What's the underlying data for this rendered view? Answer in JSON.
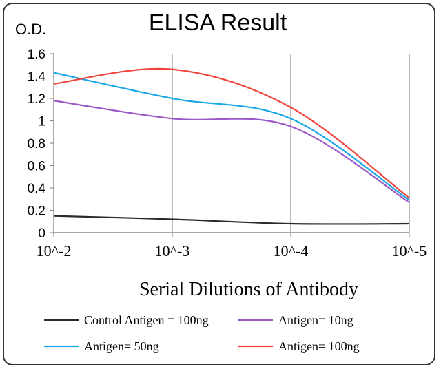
{
  "chart_data": {
    "type": "line",
    "title": "ELISA Result",
    "ylabel": "O.D.",
    "xlabel": "Serial  Dilutions  of Antibody",
    "categories": [
      "10^-2",
      "10^-3",
      "10^-4",
      "10^-5"
    ],
    "ylim": [
      0,
      1.6
    ],
    "yticks": [
      0,
      0.2,
      0.4,
      0.6,
      0.8,
      1,
      1.2,
      1.4,
      1.6
    ],
    "grid": "vertical",
    "legend_position": "bottom",
    "series": [
      {
        "name": "Control Antigen = 100ng",
        "color": "#2b2b2b",
        "values": [
          0.15,
          0.12,
          0.08,
          0.08
        ]
      },
      {
        "name": "Antigen= 10ng",
        "color": "#9b59c8",
        "values": [
          1.18,
          1.02,
          0.95,
          0.27
        ]
      },
      {
        "name": "Antigen= 50ng",
        "color": "#1aa7e6",
        "values": [
          1.43,
          1.2,
          1.02,
          0.29
        ]
      },
      {
        "name": "Antigen= 100ng",
        "color": "#f0453f",
        "values": [
          1.33,
          1.46,
          1.12,
          0.31
        ]
      }
    ]
  }
}
